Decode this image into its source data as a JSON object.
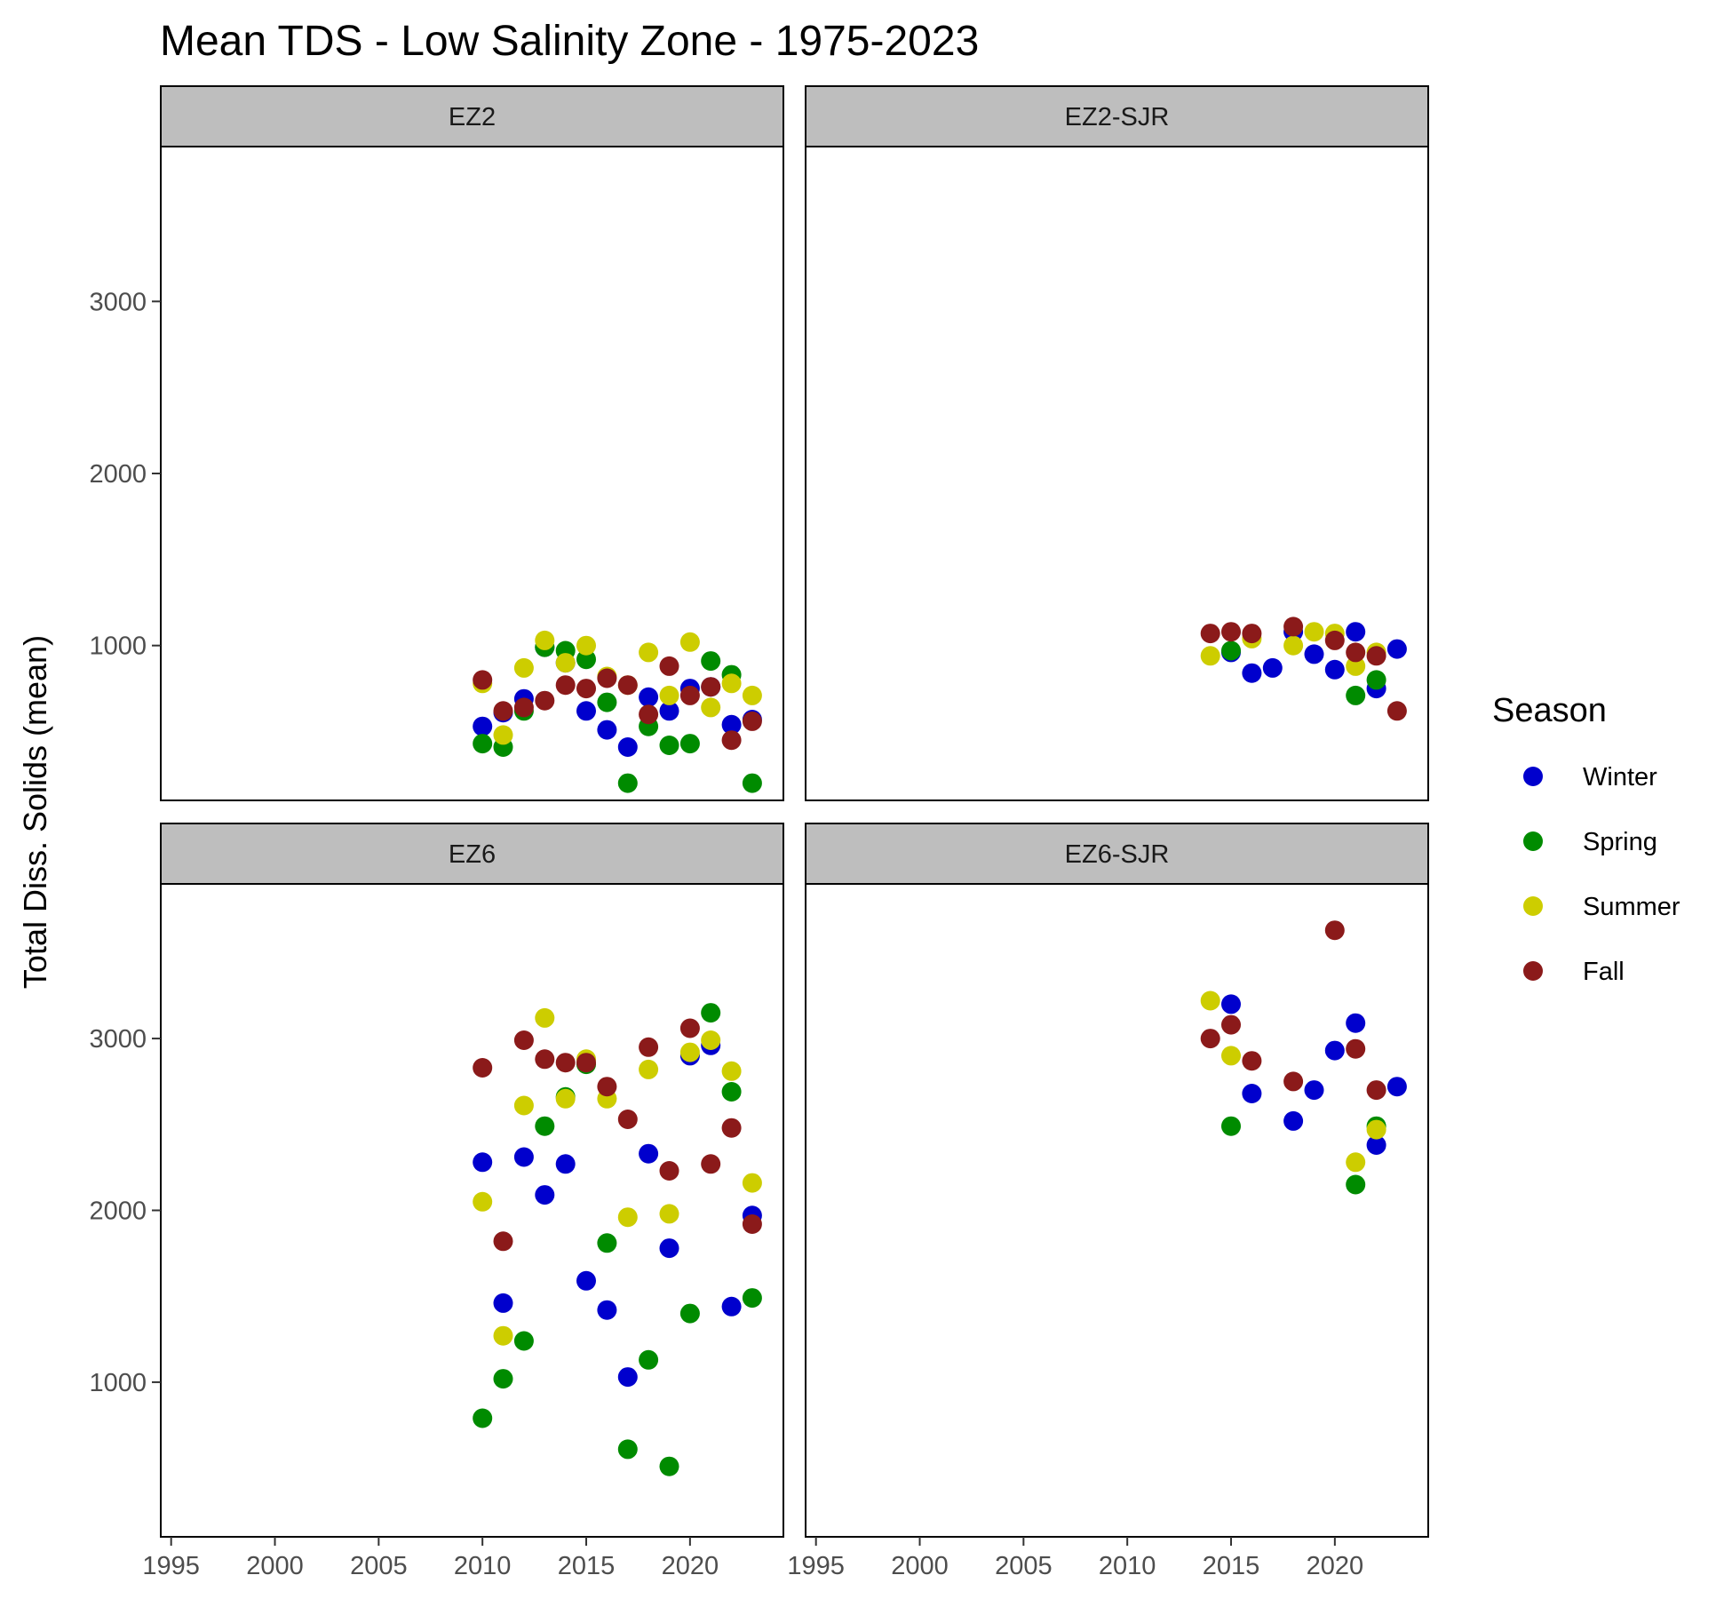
{
  "chart_data": {
    "type": "scatter",
    "title": "Mean TDS - Low Salinity Zone - 1975-2023",
    "xlabel": "",
    "ylabel": "Total Diss. Solids (mean)",
    "xlim": [
      1994.5,
      2024.5
    ],
    "x_ticks": [
      1995,
      2000,
      2005,
      2010,
      2015,
      2020
    ],
    "y_ticks": [
      1000,
      2000,
      3000
    ],
    "grid": false,
    "legend": {
      "title": "Season",
      "placement": "right",
      "entries": [
        {
          "name": "Winter",
          "color": "#0000CD"
        },
        {
          "name": "Spring",
          "color": "#008B00"
        },
        {
          "name": "Summer",
          "color": "#CDCD00"
        },
        {
          "name": "Fall",
          "color": "#8B1A1A"
        }
      ]
    },
    "panels": [
      {
        "strip": "EZ2",
        "ylim": [
          100,
          3900
        ],
        "series": [
          {
            "name": "Winter",
            "points": [
              [
                2010,
                530
              ],
              [
                2011,
                610
              ],
              [
                2012,
                690
              ],
              [
                2013,
                990
              ],
              [
                2014,
                900
              ],
              [
                2015,
                620
              ],
              [
                2016,
                510
              ],
              [
                2017,
                410
              ],
              [
                2018,
                700
              ],
              [
                2019,
                620
              ],
              [
                2020,
                750
              ],
              [
                2021,
                760
              ],
              [
                2022,
                540
              ],
              [
                2023,
                570
              ]
            ]
          },
          {
            "name": "Spring",
            "points": [
              [
                2010,
                430
              ],
              [
                2011,
                410
              ],
              [
                2012,
                620
              ],
              [
                2013,
                990
              ],
              [
                2014,
                970
              ],
              [
                2015,
                920
              ],
              [
                2016,
                670
              ],
              [
                2017,
                200
              ],
              [
                2018,
                530
              ],
              [
                2019,
                420
              ],
              [
                2020,
                430
              ],
              [
                2021,
                910
              ],
              [
                2022,
                830
              ],
              [
                2023,
                200
              ]
            ]
          },
          {
            "name": "Summer",
            "points": [
              [
                2010,
                780
              ],
              [
                2011,
                480
              ],
              [
                2012,
                870
              ],
              [
                2013,
                1030
              ],
              [
                2014,
                900
              ],
              [
                2015,
                1000
              ],
              [
                2016,
                820
              ],
              [
                2017,
                770
              ],
              [
                2018,
                960
              ],
              [
                2019,
                710
              ],
              [
                2020,
                1020
              ],
              [
                2021,
                640
              ],
              [
                2022,
                780
              ],
              [
                2023,
                710
              ]
            ]
          },
          {
            "name": "Fall",
            "points": [
              [
                2010,
                800
              ],
              [
                2011,
                620
              ],
              [
                2012,
                640
              ],
              [
                2013,
                680
              ],
              [
                2014,
                770
              ],
              [
                2015,
                750
              ],
              [
                2016,
                810
              ],
              [
                2017,
                770
              ],
              [
                2018,
                600
              ],
              [
                2019,
                880
              ],
              [
                2020,
                710
              ],
              [
                2021,
                760
              ],
              [
                2022,
                450
              ],
              [
                2023,
                560
              ]
            ]
          }
        ]
      },
      {
        "strip": "EZ2-SJR",
        "ylim": [
          100,
          3900
        ],
        "series": [
          {
            "name": "Winter",
            "points": [
              [
                2015,
                960
              ],
              [
                2016,
                840
              ],
              [
                2017,
                870
              ],
              [
                2018,
                1080
              ],
              [
                2019,
                950
              ],
              [
                2020,
                860
              ],
              [
                2021,
                1080
              ],
              [
                2022,
                750
              ],
              [
                2023,
                980
              ]
            ]
          },
          {
            "name": "Spring",
            "points": [
              [
                2015,
                970
              ],
              [
                2021,
                710
              ],
              [
                2022,
                800
              ]
            ]
          },
          {
            "name": "Summer",
            "points": [
              [
                2014,
                940
              ],
              [
                2016,
                1040
              ],
              [
                2018,
                1000
              ],
              [
                2019,
                1080
              ],
              [
                2020,
                1070
              ],
              [
                2021,
                880
              ],
              [
                2022,
                960
              ]
            ]
          },
          {
            "name": "Fall",
            "points": [
              [
                2014,
                1070
              ],
              [
                2015,
                1080
              ],
              [
                2016,
                1070
              ],
              [
                2018,
                1110
              ],
              [
                2020,
                1030
              ],
              [
                2021,
                960
              ],
              [
                2022,
                940
              ],
              [
                2023,
                620
              ]
            ]
          }
        ]
      },
      {
        "strip": "EZ6",
        "ylim": [
          100,
          3900
        ],
        "series": [
          {
            "name": "Winter",
            "points": [
              [
                2010,
                2280
              ],
              [
                2011,
                1460
              ],
              [
                2012,
                2310
              ],
              [
                2013,
                2090
              ],
              [
                2014,
                2270
              ],
              [
                2015,
                1590
              ],
              [
                2016,
                1420
              ],
              [
                2017,
                1030
              ],
              [
                2018,
                2330
              ],
              [
                2019,
                1780
              ],
              [
                2020,
                2900
              ],
              [
                2021,
                2960
              ],
              [
                2022,
                1440
              ],
              [
                2023,
                1970
              ]
            ]
          },
          {
            "name": "Spring",
            "points": [
              [
                2010,
                790
              ],
              [
                2011,
                1020
              ],
              [
                2012,
                1240
              ],
              [
                2013,
                2490
              ],
              [
                2014,
                2660
              ],
              [
                2015,
                2850
              ],
              [
                2016,
                1810
              ],
              [
                2017,
                610
              ],
              [
                2018,
                1130
              ],
              [
                2019,
                510
              ],
              [
                2020,
                1400
              ],
              [
                2021,
                3150
              ],
              [
                2022,
                2690
              ],
              [
                2023,
                1490
              ]
            ]
          },
          {
            "name": "Summer",
            "points": [
              [
                2010,
                2050
              ],
              [
                2011,
                1270
              ],
              [
                2012,
                2610
              ],
              [
                2013,
                3120
              ],
              [
                2014,
                2650
              ],
              [
                2015,
                2880
              ],
              [
                2016,
                2650
              ],
              [
                2017,
                1960
              ],
              [
                2018,
                2820
              ],
              [
                2019,
                1980
              ],
              [
                2020,
                2920
              ],
              [
                2021,
                2990
              ],
              [
                2022,
                2810
              ],
              [
                2023,
                2160
              ]
            ]
          },
          {
            "name": "Fall",
            "points": [
              [
                2010,
                2830
              ],
              [
                2011,
                1820
              ],
              [
                2012,
                2990
              ],
              [
                2013,
                2880
              ],
              [
                2014,
                2860
              ],
              [
                2015,
                2860
              ],
              [
                2016,
                2720
              ],
              [
                2017,
                2530
              ],
              [
                2018,
                2950
              ],
              [
                2019,
                2230
              ],
              [
                2020,
                3060
              ],
              [
                2021,
                2270
              ],
              [
                2022,
                2480
              ],
              [
                2023,
                1920
              ]
            ]
          }
        ]
      },
      {
        "strip": "EZ6-SJR",
        "ylim": [
          100,
          3900
        ],
        "series": [
          {
            "name": "Winter",
            "points": [
              [
                2015,
                3200
              ],
              [
                2016,
                2680
              ],
              [
                2018,
                2520
              ],
              [
                2019,
                2700
              ],
              [
                2020,
                2930
              ],
              [
                2021,
                3090
              ],
              [
                2022,
                2380
              ],
              [
                2023,
                2720
              ]
            ]
          },
          {
            "name": "Spring",
            "points": [
              [
                2015,
                2490
              ],
              [
                2021,
                2150
              ],
              [
                2022,
                2490
              ]
            ]
          },
          {
            "name": "Summer",
            "points": [
              [
                2014,
                3220
              ],
              [
                2015,
                2900
              ],
              [
                2021,
                2280
              ],
              [
                2022,
                2470
              ]
            ]
          },
          {
            "name": "Fall",
            "points": [
              [
                2014,
                3000
              ],
              [
                2015,
                3080
              ],
              [
                2016,
                2870
              ],
              [
                2018,
                2750
              ],
              [
                2020,
                3630
              ],
              [
                2021,
                2940
              ],
              [
                2022,
                2700
              ]
            ]
          }
        ]
      }
    ]
  }
}
